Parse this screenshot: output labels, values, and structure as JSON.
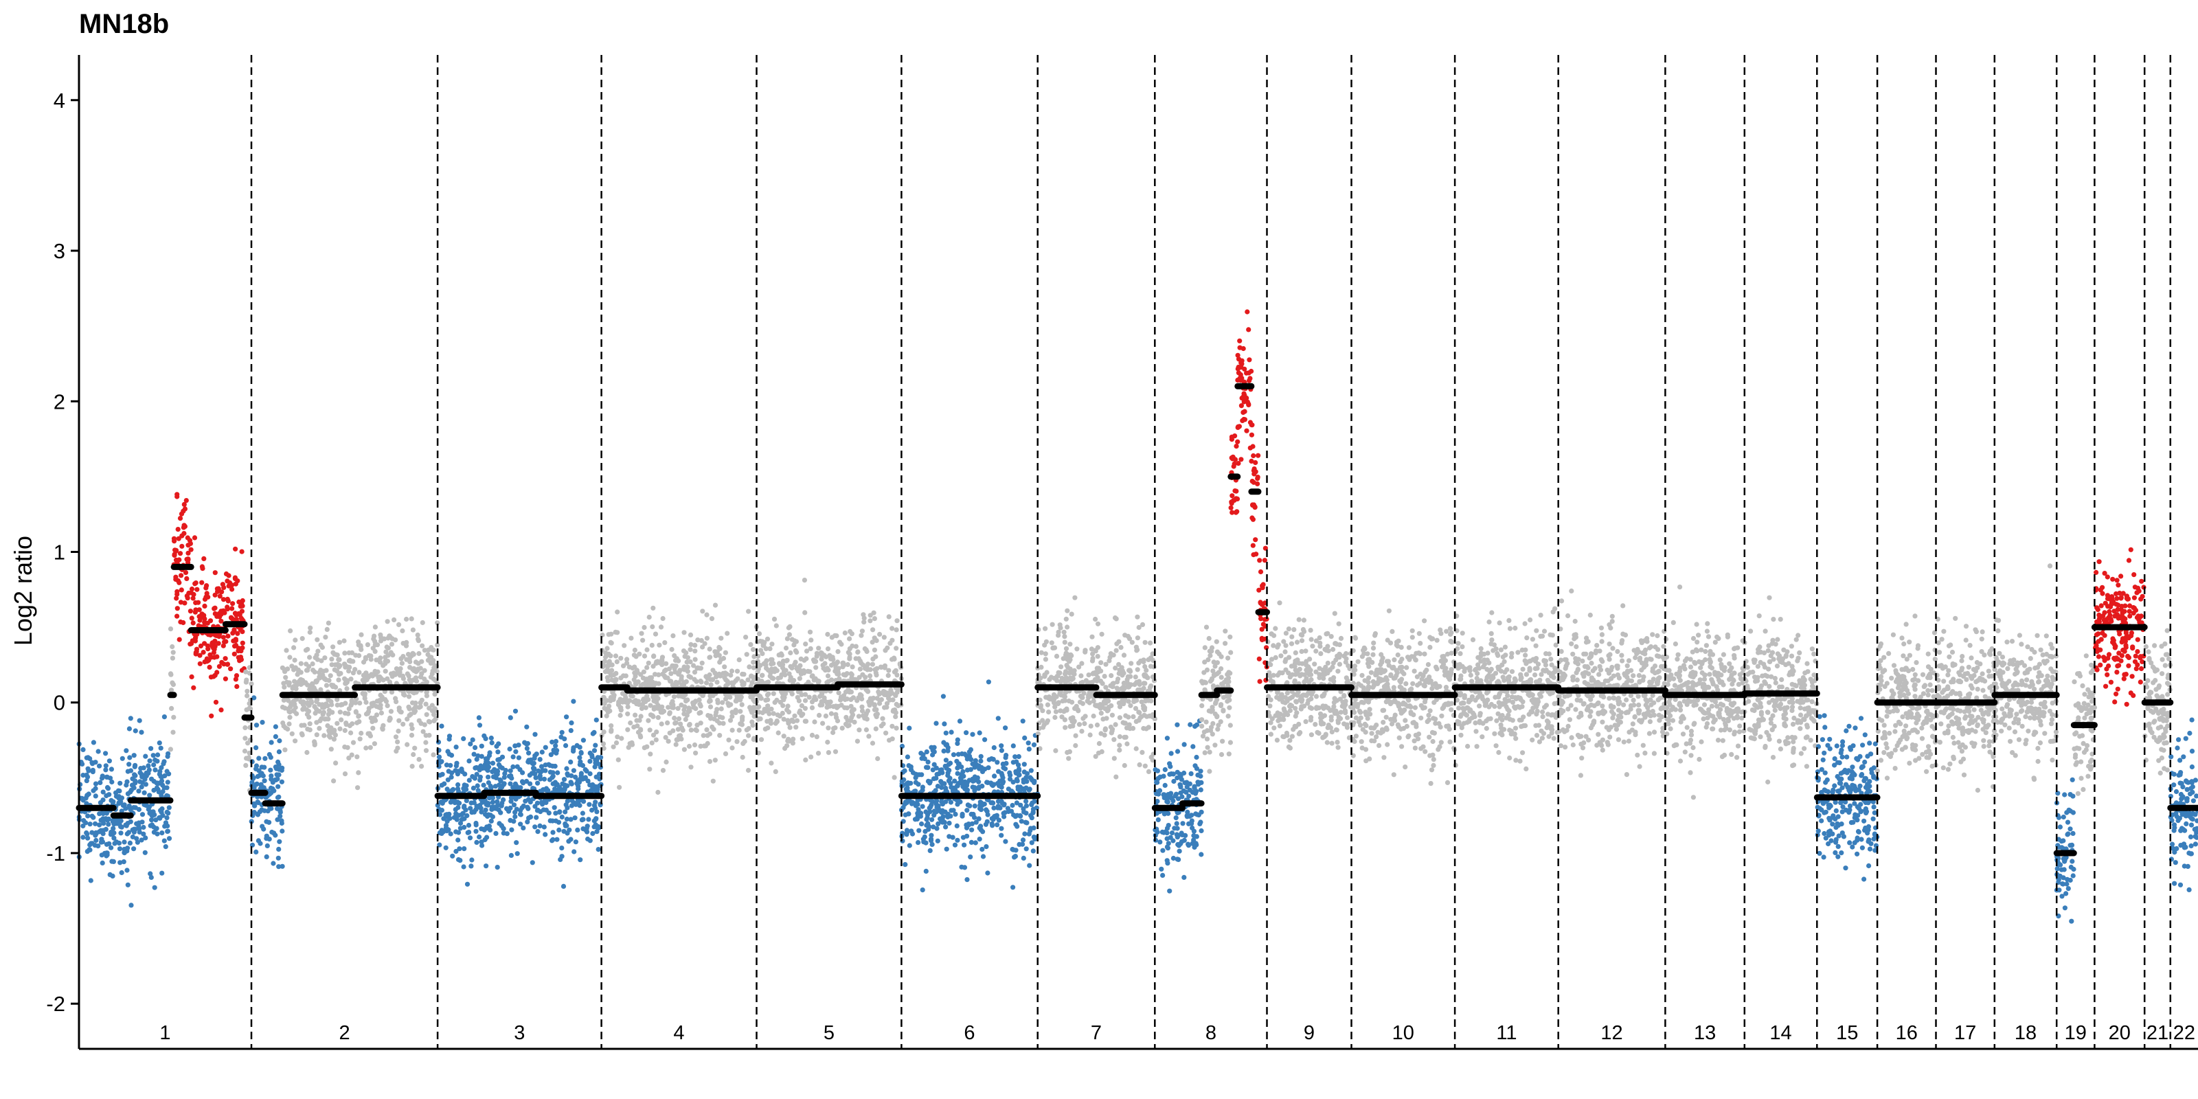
{
  "colors": {
    "loss": "#3a7ebb",
    "gain": "#e31a1c",
    "neutral": "#bdbdbd",
    "segment": "#000000"
  },
  "chart_data": {
    "type": "scatter",
    "title": "MN18b",
    "xlabel": "",
    "ylabel": "Log2 ratio",
    "ylim": [
      -2.3,
      4.3
    ],
    "yticks": [
      -2,
      -1,
      0,
      1,
      2,
      3,
      4
    ],
    "grid": false,
    "legend": "none",
    "chromosomes": [
      {
        "label": "1",
        "start": 0,
        "end": 100
      },
      {
        "label": "2",
        "start": 100,
        "end": 208
      },
      {
        "label": "3",
        "start": 208,
        "end": 303
      },
      {
        "label": "4",
        "start": 303,
        "end": 393
      },
      {
        "label": "5",
        "start": 393,
        "end": 477
      },
      {
        "label": "6",
        "start": 477,
        "end": 556
      },
      {
        "label": "7",
        "start": 556,
        "end": 624
      },
      {
        "label": "8",
        "start": 624,
        "end": 689
      },
      {
        "label": "9",
        "start": 689,
        "end": 738
      },
      {
        "label": "10",
        "start": 738,
        "end": 798
      },
      {
        "label": "11",
        "start": 798,
        "end": 858
      },
      {
        "label": "12",
        "start": 858,
        "end": 920
      },
      {
        "label": "13",
        "start": 920,
        "end": 966
      },
      {
        "label": "14",
        "start": 966,
        "end": 1008
      },
      {
        "label": "15",
        "start": 1008,
        "end": 1043
      },
      {
        "label": "16",
        "start": 1043,
        "end": 1077
      },
      {
        "label": "17",
        "start": 1077,
        "end": 1111
      },
      {
        "label": "18",
        "start": 1111,
        "end": 1147
      },
      {
        "label": "19",
        "start": 1147,
        "end": 1169
      },
      {
        "label": "20",
        "start": 1169,
        "end": 1198
      },
      {
        "label": "21",
        "start": 1198,
        "end": 1213
      },
      {
        "label": "22",
        "start": 1213,
        "end": 1229
      }
    ],
    "segments": [
      {
        "start": 0,
        "end": 20,
        "value": -0.7,
        "status": "loss"
      },
      {
        "start": 20,
        "end": 30,
        "value": -0.75,
        "status": "loss"
      },
      {
        "start": 30,
        "end": 53,
        "value": -0.65,
        "status": "loss"
      },
      {
        "start": 53,
        "end": 55,
        "value": 0.05,
        "status": "neutral"
      },
      {
        "start": 55,
        "end": 65,
        "value": 0.9,
        "status": "gain"
      },
      {
        "start": 65,
        "end": 85,
        "value": 0.48,
        "status": "gain"
      },
      {
        "start": 85,
        "end": 96,
        "value": 0.52,
        "status": "gain"
      },
      {
        "start": 96,
        "end": 100,
        "value": -0.1,
        "status": "neutral"
      },
      {
        "start": 100,
        "end": 108,
        "value": -0.6,
        "status": "loss"
      },
      {
        "start": 108,
        "end": 118,
        "value": -0.67,
        "status": "loss"
      },
      {
        "start": 118,
        "end": 160,
        "value": 0.05,
        "status": "neutral"
      },
      {
        "start": 160,
        "end": 208,
        "value": 0.1,
        "status": "neutral"
      },
      {
        "start": 208,
        "end": 235,
        "value": -0.62,
        "status": "loss"
      },
      {
        "start": 235,
        "end": 265,
        "value": -0.6,
        "status": "loss"
      },
      {
        "start": 265,
        "end": 303,
        "value": -0.62,
        "status": "loss"
      },
      {
        "start": 303,
        "end": 318,
        "value": 0.1,
        "status": "neutral"
      },
      {
        "start": 318,
        "end": 393,
        "value": 0.08,
        "status": "neutral"
      },
      {
        "start": 393,
        "end": 440,
        "value": 0.1,
        "status": "neutral"
      },
      {
        "start": 440,
        "end": 477,
        "value": 0.12,
        "status": "neutral"
      },
      {
        "start": 477,
        "end": 556,
        "value": -0.62,
        "status": "loss"
      },
      {
        "start": 556,
        "end": 590,
        "value": 0.1,
        "status": "neutral"
      },
      {
        "start": 590,
        "end": 624,
        "value": 0.05,
        "status": "neutral"
      },
      {
        "start": 624,
        "end": 640,
        "value": -0.7,
        "status": "loss"
      },
      {
        "start": 640,
        "end": 651,
        "value": -0.67,
        "status": "loss"
      },
      {
        "start": 651,
        "end": 660,
        "value": 0.05,
        "status": "neutral"
      },
      {
        "start": 660,
        "end": 668,
        "value": 0.08,
        "status": "neutral"
      },
      {
        "start": 668,
        "end": 672,
        "value": 1.5,
        "status": "gain"
      },
      {
        "start": 672,
        "end": 680,
        "value": 2.1,
        "status": "gain"
      },
      {
        "start": 680,
        "end": 684,
        "value": 1.4,
        "status": "gain"
      },
      {
        "start": 684,
        "end": 689,
        "value": 0.6,
        "status": "gain"
      },
      {
        "start": 689,
        "end": 738,
        "value": 0.1,
        "status": "neutral"
      },
      {
        "start": 738,
        "end": 798,
        "value": 0.05,
        "status": "neutral"
      },
      {
        "start": 798,
        "end": 858,
        "value": 0.1,
        "status": "neutral"
      },
      {
        "start": 858,
        "end": 920,
        "value": 0.08,
        "status": "neutral"
      },
      {
        "start": 920,
        "end": 966,
        "value": 0.05,
        "status": "neutral"
      },
      {
        "start": 966,
        "end": 1008,
        "value": 0.06,
        "status": "neutral"
      },
      {
        "start": 1008,
        "end": 1043,
        "value": -0.63,
        "status": "loss"
      },
      {
        "start": 1043,
        "end": 1077,
        "value": 0.0,
        "status": "neutral"
      },
      {
        "start": 1077,
        "end": 1111,
        "value": 0.0,
        "status": "neutral"
      },
      {
        "start": 1111,
        "end": 1147,
        "value": 0.05,
        "status": "neutral"
      },
      {
        "start": 1147,
        "end": 1157,
        "value": -1.0,
        "status": "loss"
      },
      {
        "start": 1157,
        "end": 1169,
        "value": -0.15,
        "status": "neutral"
      },
      {
        "start": 1169,
        "end": 1198,
        "value": 0.5,
        "status": "gain"
      },
      {
        "start": 1198,
        "end": 1213,
        "value": 0.0,
        "status": "neutral"
      },
      {
        "start": 1213,
        "end": 1229,
        "value": -0.7,
        "status": "loss"
      }
    ]
  }
}
